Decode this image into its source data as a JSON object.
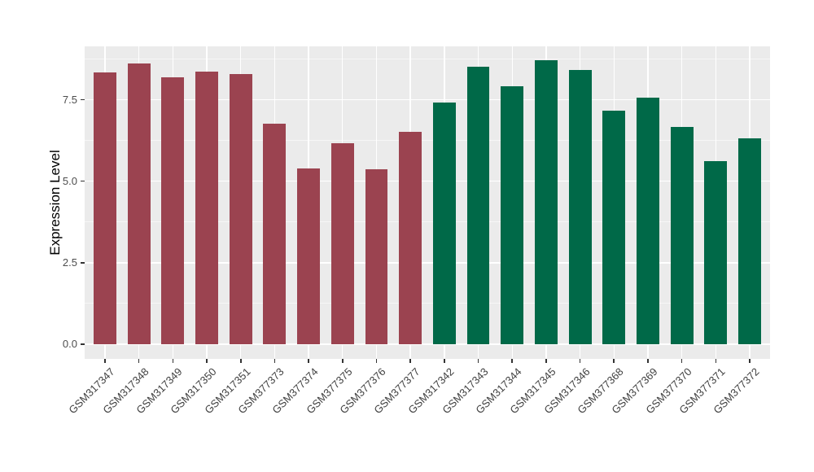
{
  "chart_data": {
    "type": "bar",
    "title": "",
    "xlabel": "",
    "ylabel": "Expression Level",
    "categories": [
      "GSM317347",
      "GSM317348",
      "GSM317349",
      "GSM317350",
      "GSM317351",
      "GSM377373",
      "GSM377374",
      "GSM377375",
      "GSM377376",
      "GSM377377",
      "GSM317342",
      "GSM317343",
      "GSM317344",
      "GSM317345",
      "GSM317346",
      "GSM377368",
      "GSM377369",
      "GSM377370",
      "GSM377371",
      "GSM377372"
    ],
    "values": [
      8.32,
      8.6,
      8.17,
      8.35,
      8.27,
      6.77,
      5.38,
      6.15,
      5.36,
      6.52,
      7.42,
      8.5,
      7.92,
      8.7,
      8.4,
      7.17,
      7.56,
      6.67,
      5.6,
      6.3
    ],
    "bar_groups": [
      "group1",
      "group1",
      "group1",
      "group1",
      "group1",
      "group1",
      "group1",
      "group1",
      "group1",
      "group1",
      "group2",
      "group2",
      "group2",
      "group2",
      "group2",
      "group2",
      "group2",
      "group2",
      "group2",
      "group2"
    ],
    "group_colors": {
      "group1": "#9B4350",
      "group2": "#006948"
    },
    "yticks": [
      0.0,
      2.5,
      5.0,
      7.5
    ],
    "ytick_labels": [
      "0.0",
      "2.5",
      "5.0",
      "7.5"
    ],
    "yminor": [
      1.25,
      3.75,
      6.25,
      8.75
    ],
    "ylim": [
      -0.45,
      9.13
    ],
    "grid": true,
    "legend_position": "none",
    "panel_bg": "#EBEBEB",
    "grid_color": "#FFFFFF"
  }
}
